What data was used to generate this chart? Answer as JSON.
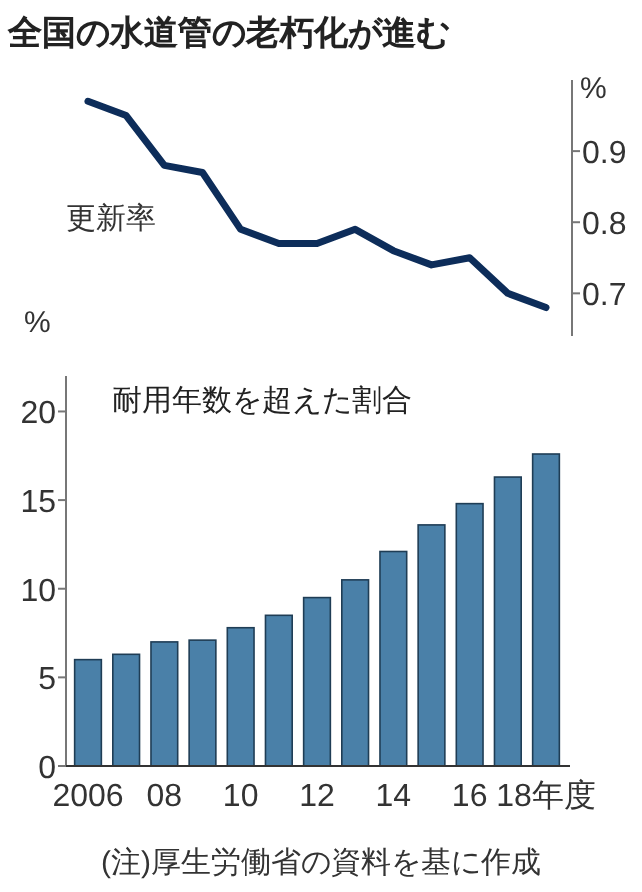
{
  "chart_data": [
    {
      "type": "line",
      "title": "全国の水道管の老朽化が進む",
      "categories": [
        null,
        null,
        null,
        null,
        null,
        null,
        null,
        null,
        null,
        null,
        null,
        null,
        null
      ],
      "series": [
        {
          "name": "更新率",
          "color": "#0d2d5a",
          "values": [
            0.97,
            0.95,
            0.88,
            0.87,
            0.79,
            0.77,
            0.77,
            0.79,
            0.76,
            0.74,
            0.75,
            0.7,
            0.68
          ]
        }
      ],
      "ylim": [
        0.64,
        1.0
      ],
      "yticks": [
        0.7,
        0.8,
        0.9
      ],
      "ylabel": "%",
      "tick_labels": "y"
    },
    {
      "type": "bar",
      "title": "耐用年数を超えた割合",
      "categories": [
        "2006",
        null,
        "08",
        null,
        "10",
        null,
        "12",
        null,
        "14",
        null,
        "16",
        null,
        "18年度"
      ],
      "values": [
        6.0,
        6.3,
        7.0,
        7.1,
        7.8,
        8.5,
        9.5,
        10.5,
        12.1,
        13.6,
        14.8,
        16.3,
        17.6
      ],
      "color": "#4a80a8",
      "ylim": [
        0,
        22
      ],
      "yticks": [
        0,
        5,
        10,
        15,
        20
      ],
      "ylabel": "%",
      "annotations": [
        "(注)厚生労働省の資料を基に作成"
      ]
    }
  ]
}
